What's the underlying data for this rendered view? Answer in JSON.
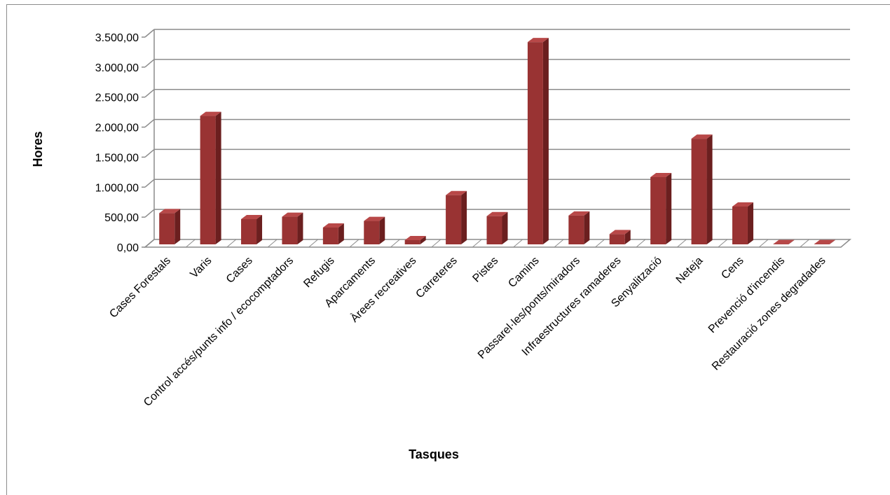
{
  "chart_data": {
    "type": "bar",
    "xlabel": "Tasques",
    "ylabel": "Hores",
    "ylim": [
      0,
      3500
    ],
    "ytick_values": [
      0,
      500,
      1000,
      1500,
      2000,
      2500,
      3000,
      3500
    ],
    "ytick_labels": [
      "0,00",
      "500,00",
      "1.000,00",
      "1.500,00",
      "2.000,00",
      "2.500,00",
      "3.000,00",
      "3.500,00"
    ],
    "categories": [
      "Cases Forestals",
      "Varis",
      "Cases",
      "Control accés/punts info / ecocomptadors",
      "Refugis",
      "Aparcaments",
      "Àrees recreatives",
      "Carreteres",
      "Pistes",
      "Camins",
      "Passarel·les/ponts/miradors",
      "Infraestructures ramaderes",
      "Senyalització",
      "Neteja",
      "Cens",
      "Prevenció d'incendis",
      "Restauració zones degradades"
    ],
    "values": [
      520,
      2140,
      420,
      460,
      280,
      390,
      70,
      820,
      470,
      3370,
      480,
      170,
      1120,
      1760,
      630,
      5,
      5
    ],
    "grid": true,
    "legend": "none",
    "bar_color": "#993333",
    "bar_side_color": "#6b1f1f",
    "bar_top_color": "#b84848",
    "grid_color": "#8c8c8c"
  }
}
